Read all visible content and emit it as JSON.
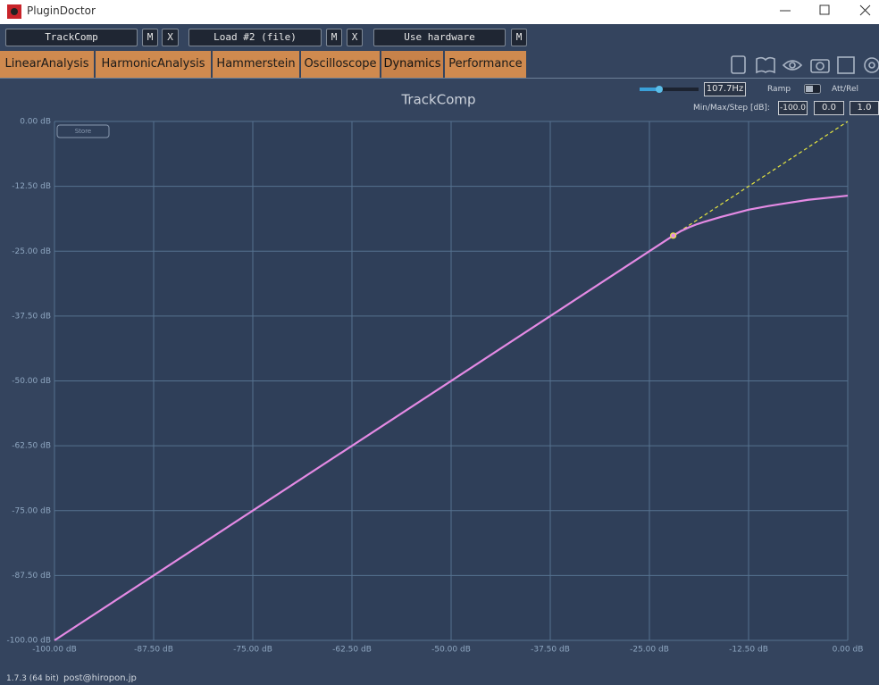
{
  "window": {
    "title": "PluginDoctor"
  },
  "toolbar": {
    "plugin_slots": [
      {
        "name": "TrackComp",
        "mute": "M",
        "remove": "X"
      },
      {
        "name": "Load #2 (file)",
        "mute": "M",
        "remove": "X"
      }
    ],
    "hardware": {
      "name": "Use hardware",
      "mute": "M"
    }
  },
  "tabs": [
    "LinearAnalysis",
    "HarmonicAnalysis",
    "Hammerstein",
    "Oscilloscope",
    "Dynamics",
    "Performance"
  ],
  "active_tab": 4,
  "controls": {
    "frequency": "107.7Hz",
    "ramp": "Ramp",
    "att_rel": "Att/Rel",
    "min_max_step_label": "Min/Max/Step [dB]:",
    "min": "-100.0",
    "max": "0.0",
    "step": "1.0",
    "store": "Store"
  },
  "footer": {
    "version": "1.7.3 (64 bit)",
    "email": "post@hiropon.jp"
  },
  "chart_data": {
    "type": "line",
    "title": "TrackComp",
    "xlim": [
      -100,
      0
    ],
    "ylim": [
      -100,
      0
    ],
    "xticks": [
      {
        "value": -100,
        "label": "-100.00 dB"
      },
      {
        "value": -87.5,
        "label": "-87.50 dB"
      },
      {
        "value": -75,
        "label": "-75.00 dB"
      },
      {
        "value": -62.5,
        "label": "-62.50 dB"
      },
      {
        "value": -50,
        "label": "-50.00 dB"
      },
      {
        "value": -37.5,
        "label": "-37.50 dB"
      },
      {
        "value": -25,
        "label": "-25.00 dB"
      },
      {
        "value": -12.5,
        "label": "-12.50 dB"
      },
      {
        "value": 0,
        "label": "0.00 dB"
      }
    ],
    "yticks": [
      {
        "value": -100,
        "label": "-100.00 dB"
      },
      {
        "value": -87.5,
        "label": "-87.50 dB"
      },
      {
        "value": -75,
        "label": "-75.00 dB"
      },
      {
        "value": -62.5,
        "label": "-62.50 dB"
      },
      {
        "value": -50,
        "label": "-50.00 dB"
      },
      {
        "value": -37.5,
        "label": "-37.50 dB"
      },
      {
        "value": -25,
        "label": "-25.00 dB"
      },
      {
        "value": -12.5,
        "label": "-12.50 dB"
      },
      {
        "value": 0,
        "label": "0.00 dB"
      }
    ],
    "grid": true,
    "series": [
      {
        "color": "#e48ae4",
        "style": "solid",
        "x": [
          -100,
          -22,
          -21,
          -20,
          -19,
          -18,
          -16,
          -14,
          -12.5,
          -10,
          -7.5,
          -5,
          -2.5,
          0
        ],
        "values": [
          -100,
          -22,
          -21.1,
          -20.4,
          -19.8,
          -19.3,
          -18.4,
          -17.6,
          -17,
          -16.3,
          -15.7,
          -15.1,
          -14.7,
          -14.3
        ]
      },
      {
        "color": "#e6e640",
        "style": "dashed",
        "x": [
          -22,
          0
        ],
        "values": [
          -22,
          0
        ]
      }
    ],
    "threshold_point": {
      "x": -22,
      "y": -22,
      "color": "#e6e640"
    }
  }
}
